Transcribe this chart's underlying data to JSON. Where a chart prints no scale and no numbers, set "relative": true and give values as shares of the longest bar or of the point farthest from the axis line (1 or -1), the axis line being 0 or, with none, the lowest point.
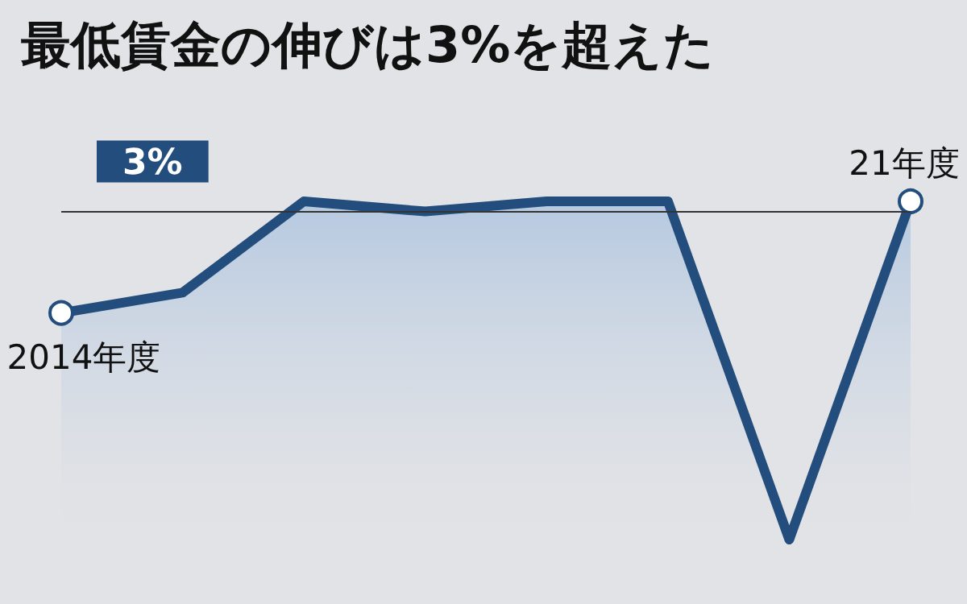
{
  "chart_data": {
    "type": "area",
    "title": "最低賃金の伸びは3%を超えた",
    "relative": true,
    "categories": [
      "2014年度",
      null,
      null,
      null,
      null,
      null,
      null,
      "21年度"
    ],
    "series": [
      {
        "color": "#234d7c",
        "values": [
          0.67,
          0.73,
          1,
          0.97,
          1,
          1,
          0,
          1
        ]
      }
    ],
    "ref_lines": [
      {
        "axis": "y",
        "value": 0.97,
        "color": "#333333"
      }
    ],
    "annotations": [
      "3%"
    ]
  }
}
